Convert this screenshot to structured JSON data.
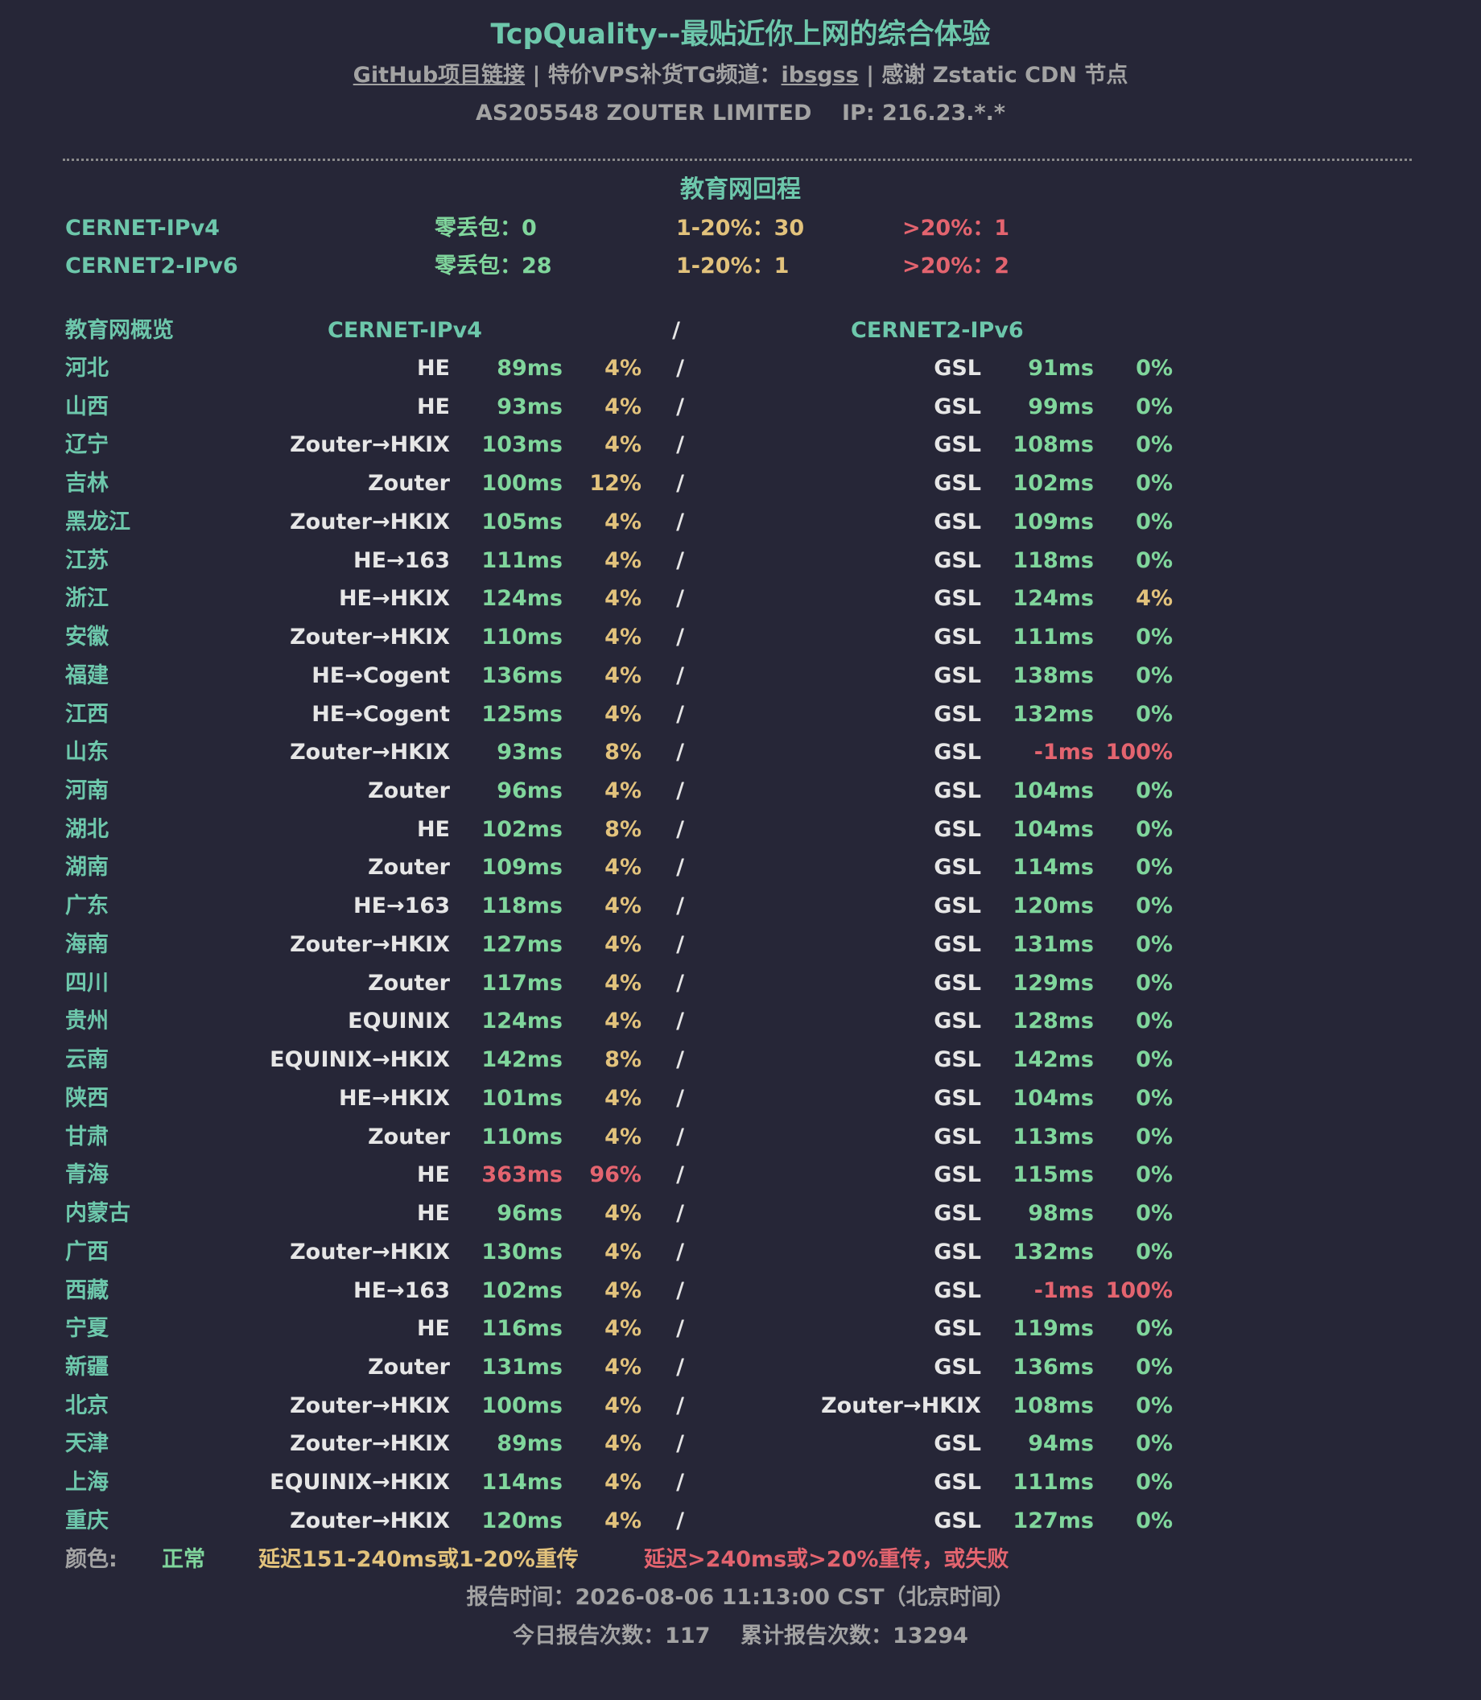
{
  "header": {
    "title": "TcpQuality--最贴近你上网的综合体验",
    "links": [
      "GitHub项目链接",
      "|",
      "特价VPS补货TG频道：",
      "ibsgss",
      "|",
      "感谢 Zstatic CDN 节点"
    ],
    "info": [
      "AS205548 ZOUTER LIMITED",
      "IP: 216.23.*.*"
    ]
  },
  "summary": {
    "title": "教育网回程",
    "rows": [
      [
        "CERNET-IPv4",
        "零丢包：0",
        "1-20%：30",
        ">20%：1"
      ],
      [
        "CERNET2-IPv6",
        "零丢包：28",
        "1-20%：1",
        ">20%：2"
      ]
    ]
  },
  "table": {
    "header": [
      "教育网概览",
      "CERNET-IPv4",
      "/",
      "CERNET2-IPv6"
    ],
    "rows": [
      [
        "河北",
        "HE",
        "89ms",
        "4%",
        "/",
        "GSL",
        "91ms",
        "0%"
      ],
      [
        "山西",
        "HE",
        "93ms",
        "4%",
        "/",
        "GSL",
        "99ms",
        "0%"
      ],
      [
        "辽宁",
        "Zouter→HKIX",
        "103ms",
        "4%",
        "/",
        "GSL",
        "108ms",
        "0%"
      ],
      [
        "吉林",
        "Zouter",
        "100ms",
        "12%",
        "/",
        "GSL",
        "102ms",
        "0%"
      ],
      [
        "黑龙江",
        "Zouter→HKIX",
        "105ms",
        "4%",
        "/",
        "GSL",
        "109ms",
        "0%"
      ],
      [
        "江苏",
        "HE→163",
        "111ms",
        "4%",
        "/",
        "GSL",
        "118ms",
        "0%"
      ],
      [
        "浙江",
        "HE→HKIX",
        "124ms",
        "4%",
        "/",
        "GSL",
        "124ms",
        "4%"
      ],
      [
        "安徽",
        "Zouter→HKIX",
        "110ms",
        "4%",
        "/",
        "GSL",
        "111ms",
        "0%"
      ],
      [
        "福建",
        "HE→Cogent",
        "136ms",
        "4%",
        "/",
        "GSL",
        "138ms",
        "0%"
      ],
      [
        "江西",
        "HE→Cogent",
        "125ms",
        "4%",
        "/",
        "GSL",
        "132ms",
        "0%"
      ],
      [
        "山东",
        "Zouter→HKIX",
        "93ms",
        "8%",
        "/",
        "GSL",
        "-1ms",
        "100%"
      ],
      [
        "河南",
        "Zouter",
        "96ms",
        "4%",
        "/",
        "GSL",
        "104ms",
        "0%"
      ],
      [
        "湖北",
        "HE",
        "102ms",
        "8%",
        "/",
        "GSL",
        "104ms",
        "0%"
      ],
      [
        "湖南",
        "Zouter",
        "109ms",
        "4%",
        "/",
        "GSL",
        "114ms",
        "0%"
      ],
      [
        "广东",
        "HE→163",
        "118ms",
        "4%",
        "/",
        "GSL",
        "120ms",
        "0%"
      ],
      [
        "海南",
        "Zouter→HKIX",
        "127ms",
        "4%",
        "/",
        "GSL",
        "131ms",
        "0%"
      ],
      [
        "四川",
        "Zouter",
        "117ms",
        "4%",
        "/",
        "GSL",
        "129ms",
        "0%"
      ],
      [
        "贵州",
        "EQUINIX",
        "124ms",
        "4%",
        "/",
        "GSL",
        "128ms",
        "0%"
      ],
      [
        "云南",
        "EQUINIX→HKIX",
        "142ms",
        "8%",
        "/",
        "GSL",
        "142ms",
        "0%"
      ],
      [
        "陕西",
        "HE→HKIX",
        "101ms",
        "4%",
        "/",
        "GSL",
        "104ms",
        "0%"
      ],
      [
        "甘肃",
        "Zouter",
        "110ms",
        "4%",
        "/",
        "GSL",
        "113ms",
        "0%"
      ],
      [
        "青海",
        "HE",
        "363ms",
        "96%",
        "/",
        "GSL",
        "115ms",
        "0%"
      ],
      [
        "内蒙古",
        "HE",
        "96ms",
        "4%",
        "/",
        "GSL",
        "98ms",
        "0%"
      ],
      [
        "广西",
        "Zouter→HKIX",
        "130ms",
        "4%",
        "/",
        "GSL",
        "132ms",
        "0%"
      ],
      [
        "西藏",
        "HE→163",
        "102ms",
        "4%",
        "/",
        "GSL",
        "-1ms",
        "100%"
      ],
      [
        "宁夏",
        "HE",
        "116ms",
        "4%",
        "/",
        "GSL",
        "119ms",
        "0%"
      ],
      [
        "新疆",
        "Zouter",
        "131ms",
        "4%",
        "/",
        "GSL",
        "136ms",
        "0%"
      ],
      [
        "北京",
        "Zouter→HKIX",
        "100ms",
        "4%",
        "/",
        "Zouter→HKIX",
        "108ms",
        "0%"
      ],
      [
        "天津",
        "Zouter→HKIX",
        "89ms",
        "4%",
        "/",
        "GSL",
        "94ms",
        "0%"
      ],
      [
        "上海",
        "EQUINIX→HKIX",
        "114ms",
        "4%",
        "/",
        "GSL",
        "111ms",
        "0%"
      ],
      [
        "重庆",
        "Zouter→HKIX",
        "120ms",
        "4%",
        "/",
        "GSL",
        "127ms",
        "0%"
      ]
    ]
  },
  "legend": [
    "颜色:",
    "正常",
    "延迟151-240ms或1-20%重传",
    "延迟>240ms或>20%重传，或失败"
  ],
  "footer": [
    "报告时间：2026-08-06 11:13:00 CST（北京时间）",
    "今日报告次数：117",
    "累计报告次数：13294"
  ],
  "colors": {
    "normal": "#80d69c",
    "warn": "#e2c27c",
    "bad": "#e3646f"
  }
}
